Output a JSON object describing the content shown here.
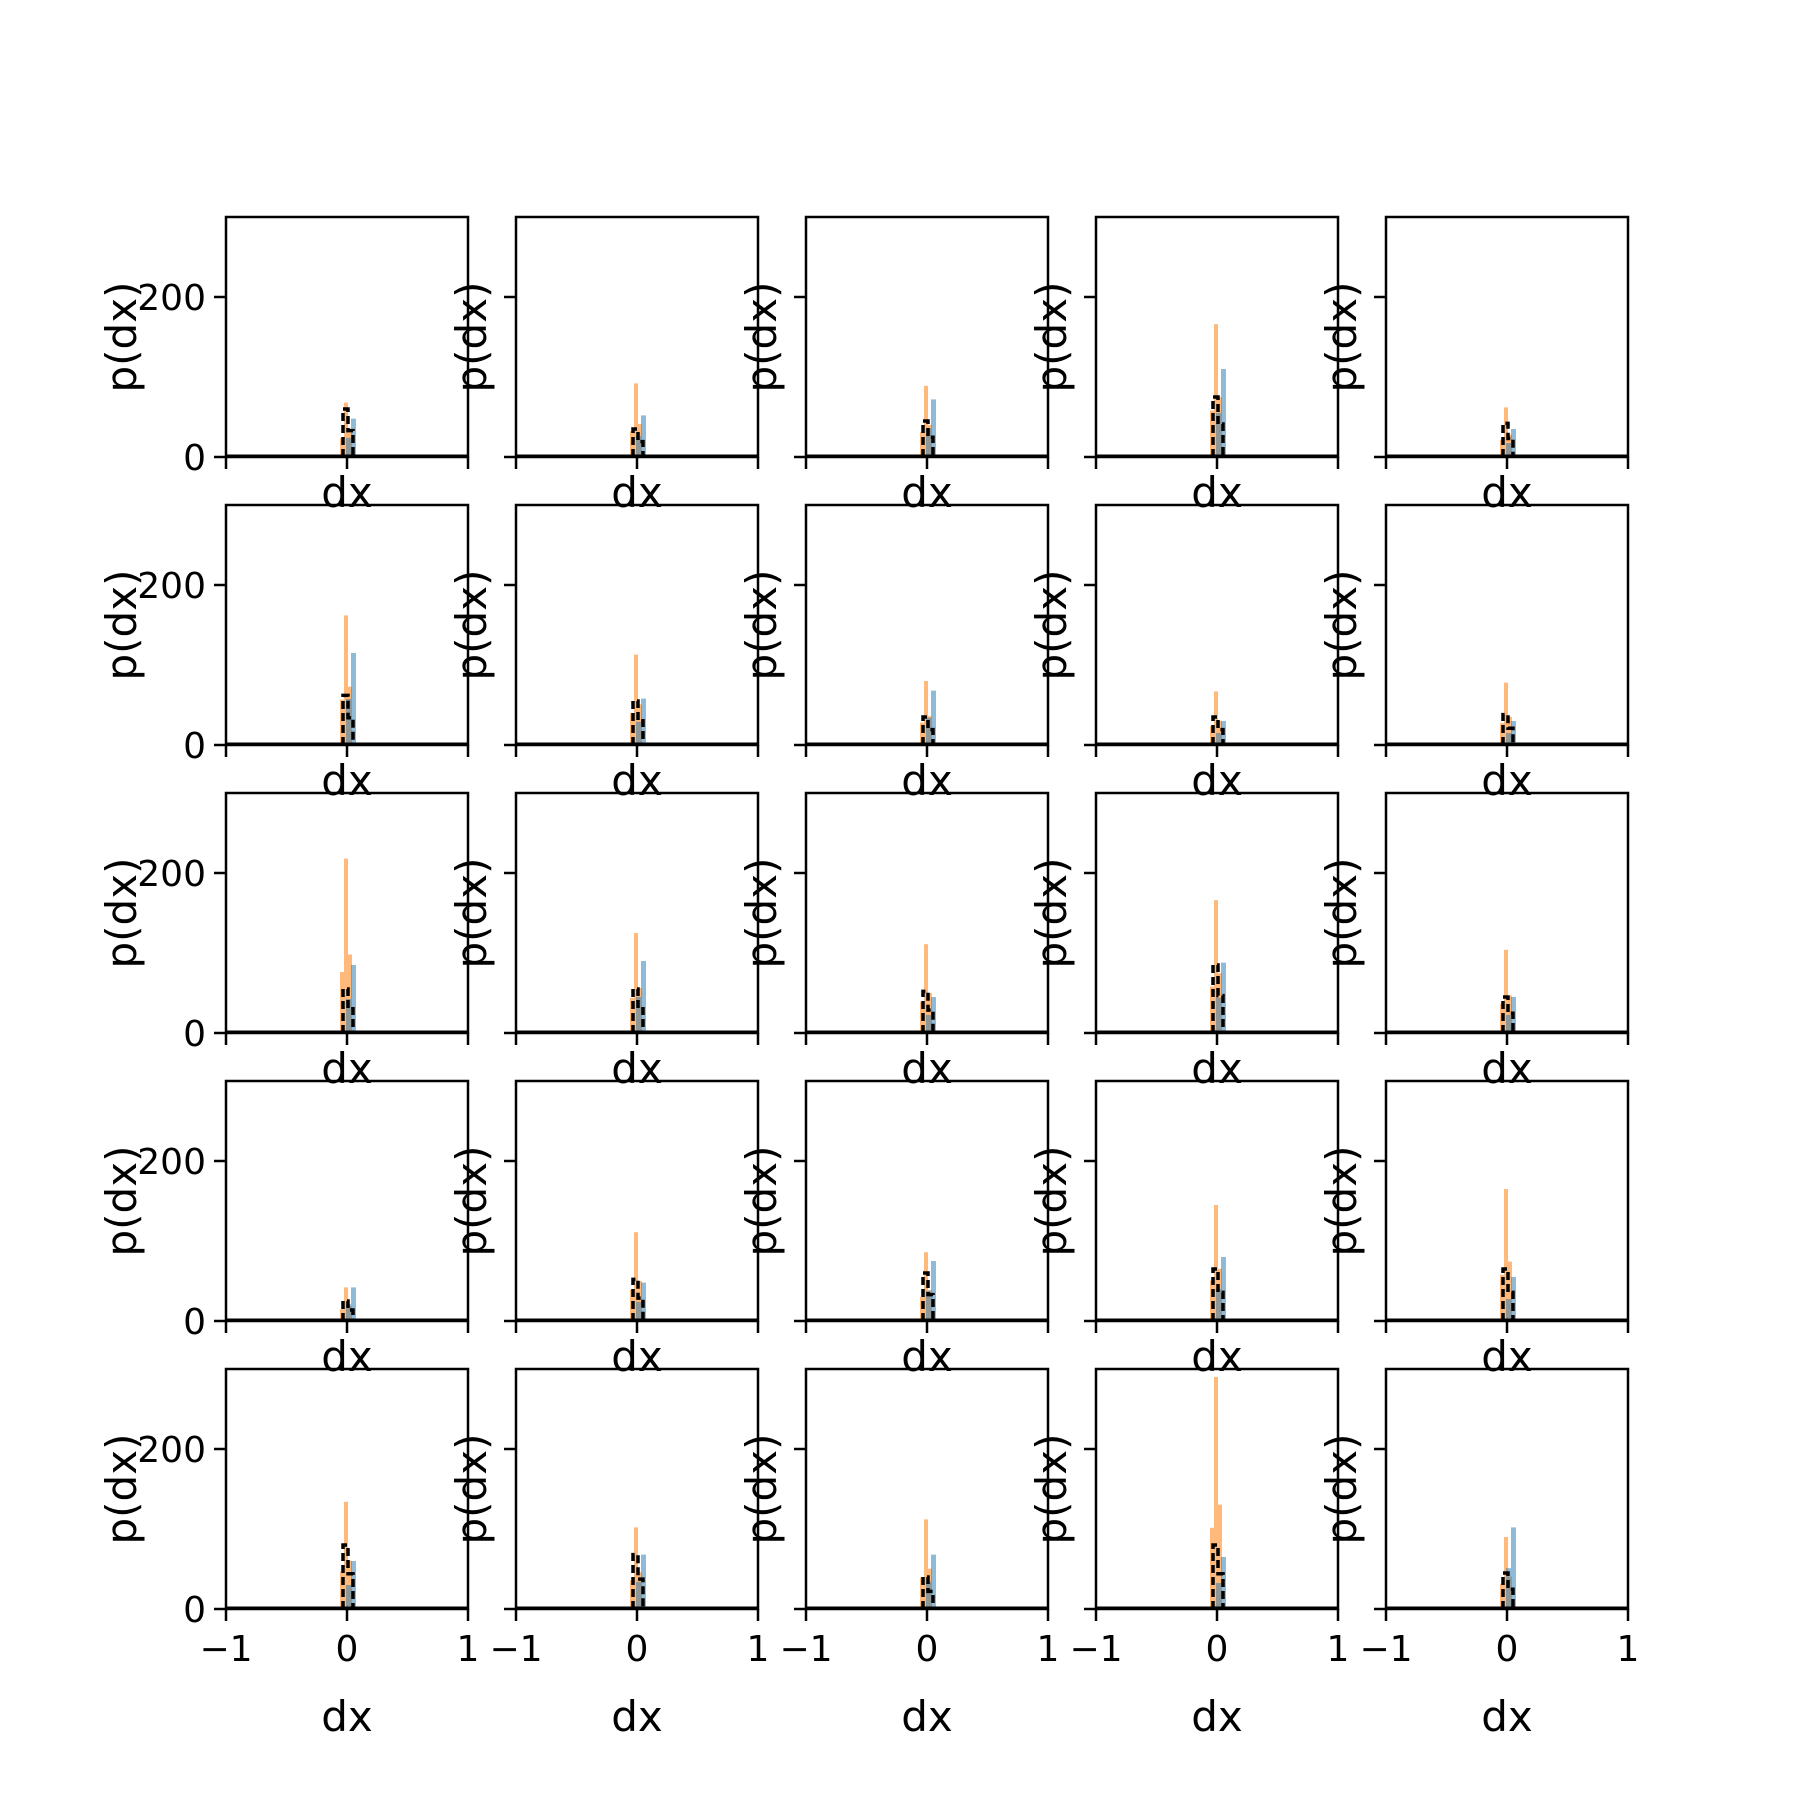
{
  "chart_data": {
    "type": "histogram-grid",
    "rows": 5,
    "cols": 5,
    "xlabel": "dx",
    "ylabel": "p(dx)",
    "xlim": [
      -1,
      1
    ],
    "ylim": [
      0,
      300
    ],
    "xticks": [
      -1,
      0,
      1
    ],
    "xtick_labels": [
      "−1",
      "0",
      "1"
    ],
    "yticks": [
      0,
      200
    ],
    "ytick_labels": [
      "0",
      "200"
    ],
    "grid": false,
    "colors": {
      "blue": "#1f77b4",
      "orange": "#ff7f0e",
      "black": "#000000",
      "axes": "#000000"
    },
    "panels": [
      {
        "orange": 68,
        "blue": 48,
        "black": 60
      },
      {
        "orange": 92,
        "blue": 52,
        "black": 35
      },
      {
        "orange": 89,
        "blue": 72,
        "black": 45
      },
      {
        "orange": 166,
        "blue": 110,
        "black": 75
      },
      {
        "orange": 62,
        "blue": 35,
        "black": 42
      },
      {
        "orange": 162,
        "blue": 115,
        "black": 62
      },
      {
        "orange": 113,
        "blue": 58,
        "black": 55
      },
      {
        "orange": 80,
        "blue": 68,
        "black": 35
      },
      {
        "orange": 67,
        "blue": 30,
        "black": 35
      },
      {
        "orange": 78,
        "blue": 30,
        "black": 38
      },
      {
        "orange": 218,
        "blue": 85,
        "black": 55
      },
      {
        "orange": 125,
        "blue": 90,
        "black": 55
      },
      {
        "orange": 111,
        "blue": 45,
        "black": 52
      },
      {
        "orange": 166,
        "blue": 88,
        "black": 85
      },
      {
        "orange": 104,
        "blue": 45,
        "black": 45
      },
      {
        "orange": 42,
        "blue": 42,
        "black": 25
      },
      {
        "orange": 111,
        "blue": 48,
        "black": 52
      },
      {
        "orange": 86,
        "blue": 75,
        "black": 60
      },
      {
        "orange": 145,
        "blue": 80,
        "black": 65
      },
      {
        "orange": 165,
        "blue": 55,
        "black": 65
      },
      {
        "orange": 134,
        "blue": 60,
        "black": 80
      },
      {
        "orange": 102,
        "blue": 68,
        "black": 68
      },
      {
        "orange": 112,
        "blue": 68,
        "black": 40
      },
      {
        "orange": 290,
        "blue": 65,
        "black": 80
      },
      {
        "orange": 90,
        "blue": 102,
        "black": 45
      }
    ]
  }
}
